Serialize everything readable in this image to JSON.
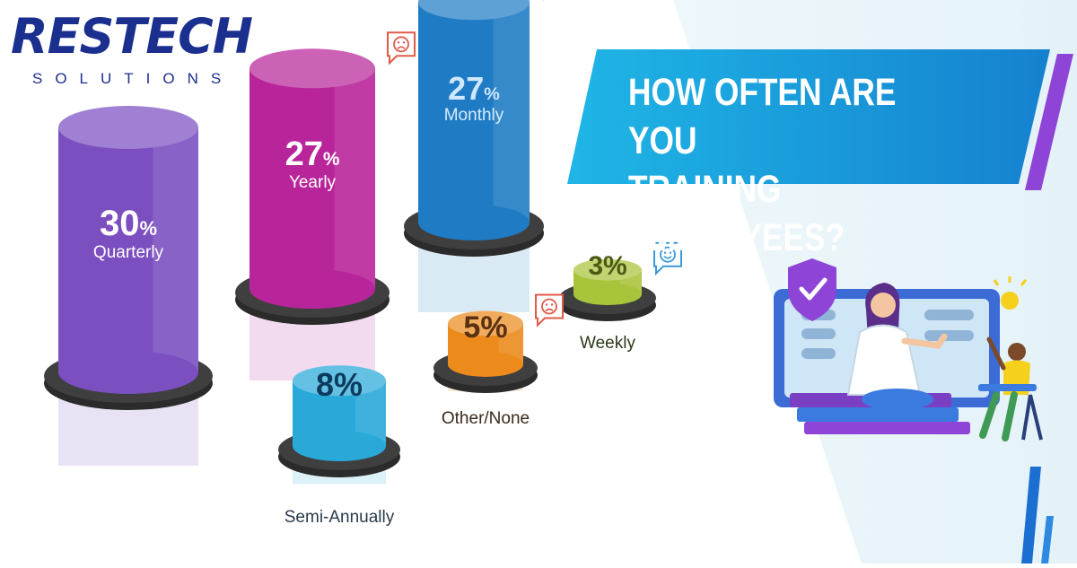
{
  "brand": {
    "name": "RESTECH",
    "tagline": "SOLUTIONS",
    "colors": {
      "primary": "#1b2f8f",
      "accent": "#1aa3e8"
    }
  },
  "banner": {
    "line1": "HOW OFTEN ARE YOU",
    "line2": "TRAINING EMPLOYEES?",
    "colors": {
      "fill": "#1497d8",
      "stripe": "#8e44d6"
    }
  },
  "chart_data": {
    "type": "bar",
    "title": "HOW OFTEN ARE YOU TRAINING EMPLOYEES?",
    "unit": "%",
    "categories": [
      "Quarterly",
      "Yearly",
      "Monthly",
      "Semi-Annually",
      "Other/None",
      "Weekly"
    ],
    "values": [
      30,
      27,
      27,
      8,
      5,
      3
    ],
    "value_labels": [
      "30",
      "27",
      "27",
      "8%",
      "5%",
      "3%"
    ],
    "unit_labels": [
      "%",
      "%",
      "%",
      "",
      "",
      ""
    ],
    "sentiment_icons": [
      "none",
      "sad-face-icon",
      "smiley-face-icon",
      "none",
      "sad-face-icon",
      "smiley-face-icon"
    ],
    "colors": [
      "#7b4fc0",
      "#b8259a",
      "#1f7cc4",
      "#29a9d8",
      "#ec8a1c",
      "#a7c43a"
    ],
    "legend": "none",
    "grid": false
  }
}
